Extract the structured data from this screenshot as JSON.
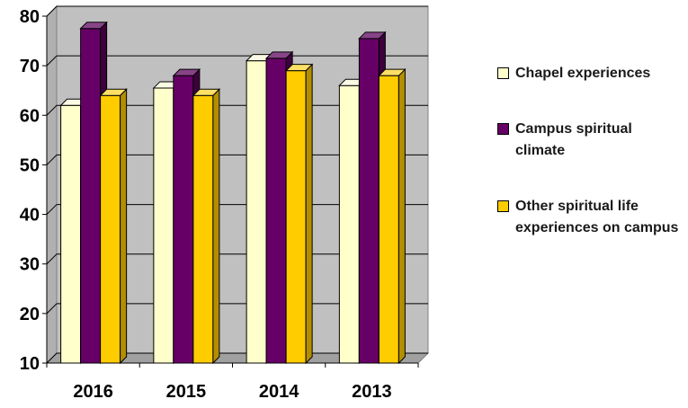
{
  "chart_data": {
    "type": "bar",
    "categories": [
      "2016",
      "2015",
      "2014",
      "2013"
    ],
    "series": [
      {
        "name": "Chapel experiences",
        "values": [
          62,
          65.5,
          71,
          66
        ],
        "color": "#ffffcc",
        "side": "#d6d6a8",
        "top": "#fafae4"
      },
      {
        "name": "Campus spiritual climate",
        "values": [
          77.5,
          68,
          71.5,
          75.5
        ],
        "color": "#660066",
        "side": "#3d003d",
        "top": "#884488"
      },
      {
        "name": "Other spiritual life experiences on campus",
        "values": [
          64,
          64,
          69,
          68
        ],
        "color": "#ffcc00",
        "side": "#b38f00",
        "top": "#ffe066"
      }
    ],
    "yticks": [
      "80",
      "70",
      "60",
      "50",
      "40",
      "30",
      "20",
      "10"
    ],
    "ylim": [
      10,
      80
    ],
    "grid": true,
    "legend_position": "right",
    "wall_color": "#c0c0c0"
  }
}
